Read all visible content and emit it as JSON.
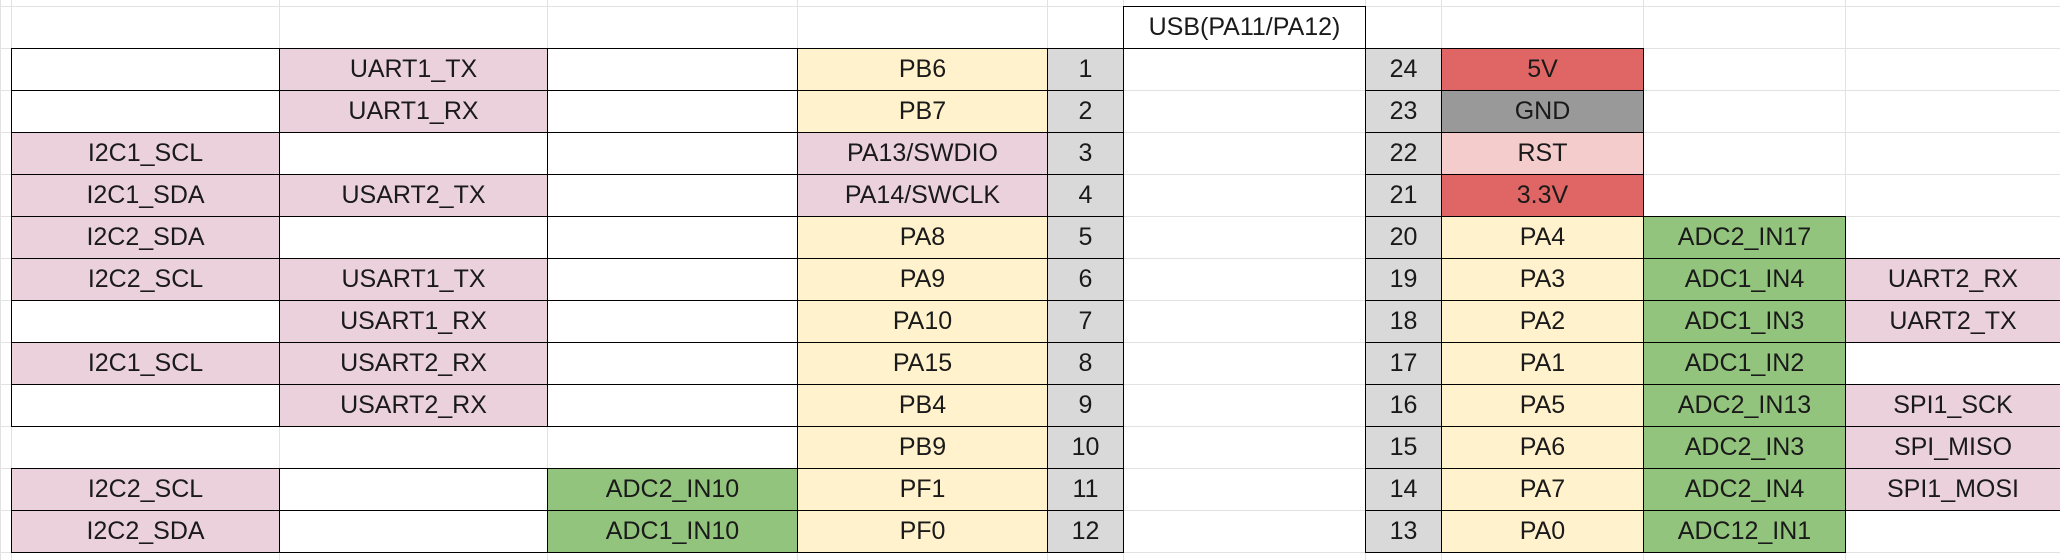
{
  "colors": {
    "uart": "#ead1dc",
    "port": "#fff2cc",
    "pin": "#d9d9d9",
    "adc": "#93c47d",
    "power_5v": "#e06666",
    "power_3v3": "#e06666",
    "gnd": "#999999",
    "rst": "#f4cccc",
    "gridline": "#e2e2e2",
    "header": "#ffffff"
  },
  "header": {
    "usb_label": "USB(PA11/PA12)"
  },
  "left_rows": [
    {
      "col_a": "",
      "col_b": "UART1_TX",
      "col_c": "",
      "port": "PB6",
      "pin": "1"
    },
    {
      "col_a": "",
      "col_b": "UART1_RX",
      "col_c": "",
      "port": "PB7",
      "pin": "2"
    },
    {
      "col_a": "I2C1_SCL",
      "col_b": "",
      "col_c": "",
      "port": "PA13/SWDIO",
      "pin": "3"
    },
    {
      "col_a": "I2C1_SDA",
      "col_b": "USART2_TX",
      "col_c": "",
      "port": "PA14/SWCLK",
      "pin": "4"
    },
    {
      "col_a": "I2C2_SDA",
      "col_b": "",
      "col_c": "",
      "port": "PA8",
      "pin": "5"
    },
    {
      "col_a": "I2C2_SCL",
      "col_b": "USART1_TX",
      "col_c": "",
      "port": "PA9",
      "pin": "6"
    },
    {
      "col_a": "",
      "col_b": "USART1_RX",
      "col_c": "",
      "port": "PA10",
      "pin": "7"
    },
    {
      "col_a": "I2C1_SCL",
      "col_b": "USART2_RX",
      "col_c": "",
      "port": "PA15",
      "pin": "8"
    },
    {
      "col_a": "",
      "col_b": "USART2_RX",
      "col_c": "",
      "port": "PB4",
      "pin": "9"
    },
    {
      "col_a": "",
      "col_b": "",
      "col_c": "",
      "port": "PB9",
      "pin": "10"
    },
    {
      "col_a": "I2C2_SCL",
      "col_b": "",
      "col_c": "ADC2_IN10",
      "port": "PF1",
      "pin": "11"
    },
    {
      "col_a": "I2C2_SDA",
      "col_b": "",
      "col_c": "ADC1_IN10",
      "port": "PF0",
      "pin": "12"
    }
  ],
  "right_rows": [
    {
      "pin": "24",
      "port": "5V",
      "adc": "",
      "func": ""
    },
    {
      "pin": "23",
      "port": "GND",
      "adc": "",
      "func": ""
    },
    {
      "pin": "22",
      "port": "RST",
      "adc": "",
      "func": ""
    },
    {
      "pin": "21",
      "port": "3.3V",
      "adc": "",
      "func": ""
    },
    {
      "pin": "20",
      "port": "PA4",
      "adc": "ADC2_IN17",
      "func": ""
    },
    {
      "pin": "19",
      "port": "PA3",
      "adc": "ADC1_IN4",
      "func": "UART2_RX"
    },
    {
      "pin": "18",
      "port": "PA2",
      "adc": "ADC1_IN3",
      "func": "UART2_TX"
    },
    {
      "pin": "17",
      "port": "PA1",
      "adc": "ADC1_IN2",
      "func": ""
    },
    {
      "pin": "16",
      "port": "PA5",
      "adc": "ADC2_IN13",
      "func": "SPI1_SCK"
    },
    {
      "pin": "15",
      "port": "PA6",
      "adc": "ADC2_IN3",
      "func": "SPI_MISO"
    },
    {
      "pin": "14",
      "port": "PA7",
      "adc": "ADC2_IN4",
      "func": "SPI1_MOSI"
    },
    {
      "pin": "13",
      "port": "PA0",
      "adc": "ADC12_IN1",
      "func": ""
    }
  ]
}
